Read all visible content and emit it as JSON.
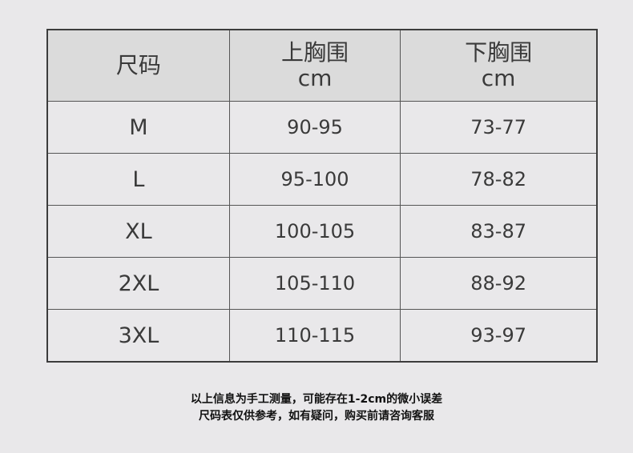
{
  "table": {
    "headers": [
      {
        "title": "尺码",
        "unit": ""
      },
      {
        "title": "上胸围",
        "unit": "cm"
      },
      {
        "title": "下胸围",
        "unit": "cm"
      }
    ],
    "rows": [
      [
        "M",
        "90-95",
        "73-77"
      ],
      [
        "L",
        "95-100",
        "78-82"
      ],
      [
        "XL",
        "100-105",
        "83-87"
      ],
      [
        "2XL",
        "105-110",
        "88-92"
      ],
      [
        "3XL",
        "110-115",
        "93-97"
      ]
    ]
  },
  "notes": [
    "以上信息为手工测量，可能存在1-2cm的微小误差",
    "尺码表仅供参考，如有疑问，购买前请咨询客服"
  ]
}
